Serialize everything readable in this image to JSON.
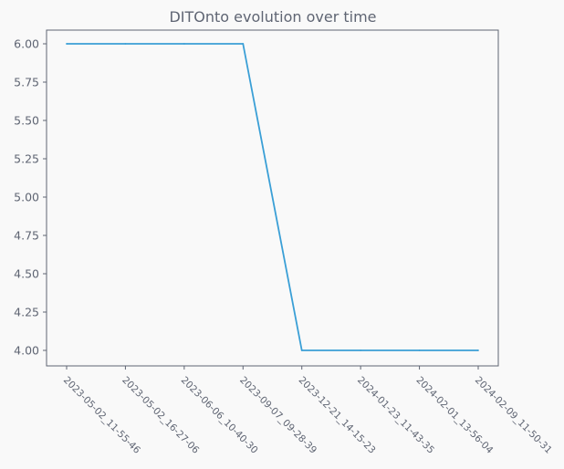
{
  "chart_data": {
    "type": "line",
    "title": "DITOnto evolution over time",
    "xlabel": "",
    "ylabel": "",
    "categories": [
      "2023-05-02_11-55-46",
      "2023-05-02_16-27-06",
      "2023-06-06_10-40-30",
      "2023-09-07_09-28-39",
      "2023-12-21_14-15-23",
      "2024-01-23_11-43-35",
      "2024-02-01_13-56-04",
      "2024-02-09_11-50-31"
    ],
    "series": [
      {
        "values": [
          6,
          6,
          6,
          6,
          4,
          4,
          4,
          4
        ],
        "color": "#3a9fd6"
      }
    ],
    "yticks": [
      "4.00",
      "4.25",
      "4.50",
      "4.75",
      "5.00",
      "5.25",
      "5.50",
      "5.75",
      "6.00"
    ],
    "ylim": [
      3.9,
      6.1
    ],
    "grid": false,
    "legend": "none",
    "colors": {
      "axes": "#5f6573",
      "background": "#f9f9f9",
      "line": "#3a9fd6"
    }
  }
}
